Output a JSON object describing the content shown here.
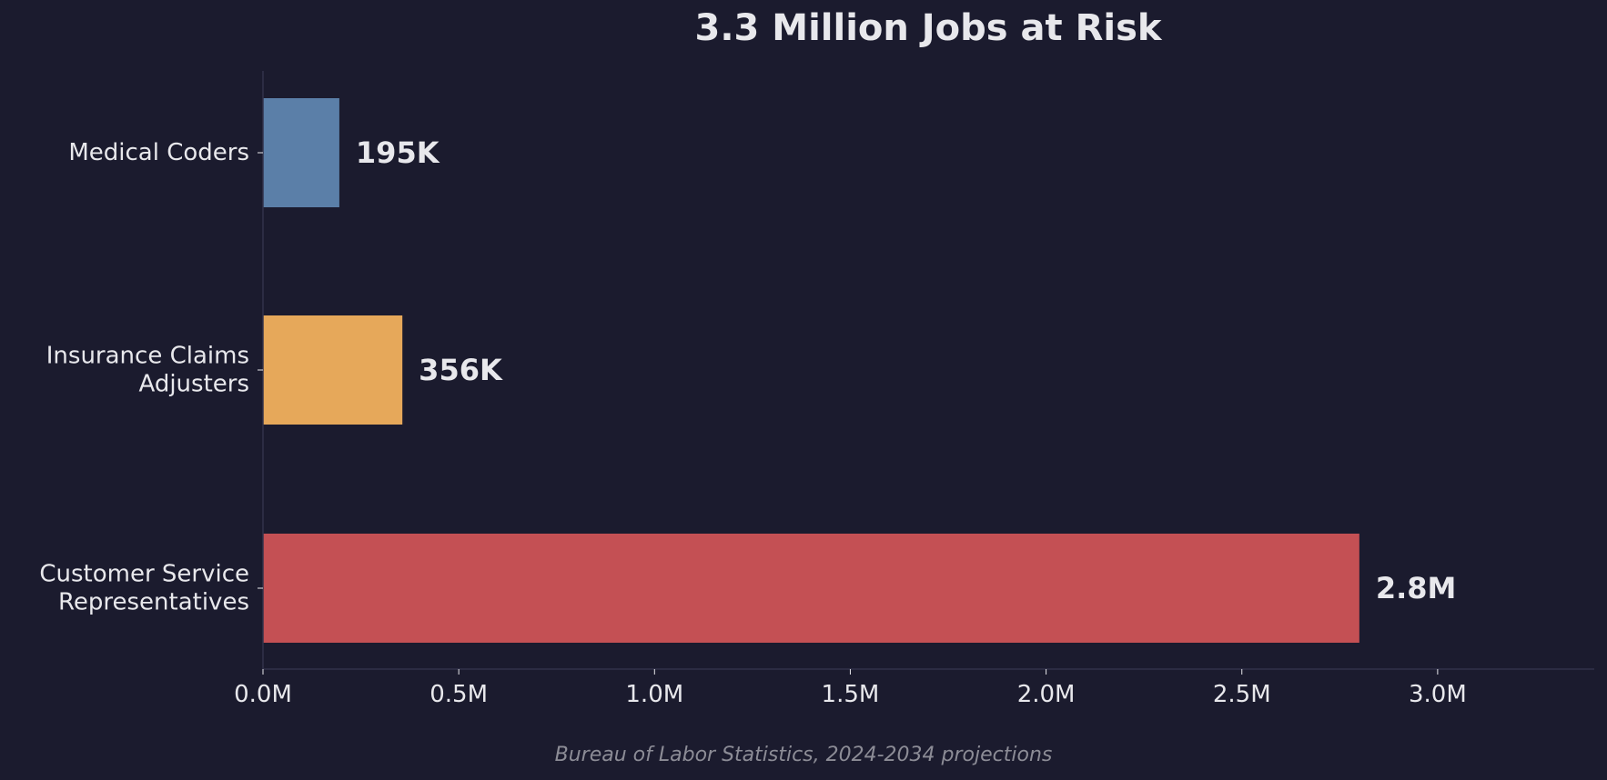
{
  "chart_data": {
    "type": "bar",
    "orientation": "horizontal",
    "title": "3.3 Million Jobs at Risk",
    "categories": [
      "Medical Coders",
      "Insurance Claims Adjusters",
      "Customer Service Representatives"
    ],
    "category_label_lines": [
      [
        "Medical Coders"
      ],
      [
        "Insurance Claims",
        "Adjusters"
      ],
      [
        "Customer Service",
        "Representatives"
      ]
    ],
    "values": [
      195000,
      356000,
      2800000
    ],
    "data_labels": [
      "195K",
      "356K",
      "2.8M"
    ],
    "bar_colors": [
      "#5b7fa8",
      "#e6a85a",
      "#c45054"
    ],
    "xlabel": "",
    "ylabel": "",
    "xlim": [
      0,
      3400000
    ],
    "x_ticks": [
      0,
      500000,
      1000000,
      1500000,
      2000000,
      2500000,
      3000000
    ],
    "x_tick_labels": [
      "0.0M",
      "0.5M",
      "1.0M",
      "1.5M",
      "2.0M",
      "2.5M",
      "3.0M"
    ],
    "grid": false,
    "legend": "none"
  },
  "footnote": "Bureau of Labor Statistics, 2024-2034 projections",
  "colors": {
    "background": "#1b1b2e",
    "text": "#e8e8ec",
    "muted_text": "#8c8c96",
    "axis": "#33334a"
  }
}
